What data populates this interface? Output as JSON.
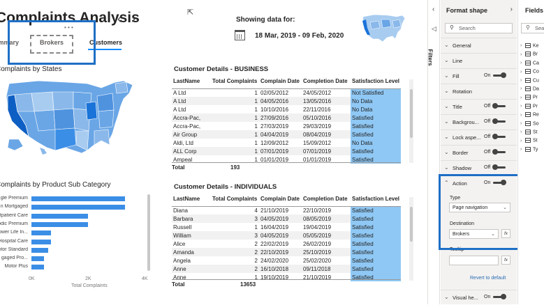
{
  "report": {
    "title": "Complaints Analysis",
    "nav_prev": "‹",
    "nav_next": "›",
    "tabs": [
      {
        "label": "Summary"
      },
      {
        "label": "Brokers"
      },
      {
        "label": "Customers"
      }
    ],
    "showing_label": "Showing data for:",
    "date_range": "18 Mar, 2019 - 09 Feb, 2020",
    "map_title": "Complaints by States",
    "bar_title": "Complaints by Product Sub Category"
  },
  "chart_data": {
    "type": "bar",
    "orientation": "horizontal",
    "title": "Complaints by Product Sub Category",
    "categories": [
      "Single Premium",
      "Non Mortgaged",
      "Outpatient Care",
      "Periodic Premium",
      "Whole Life In...",
      "Hospital Care",
      "Motor Standard",
      "Mortgaged Pro...",
      "Motor Plus"
    ],
    "category_labels_visible": [
      "gle Premium",
      "n Mortgaged",
      "utpatient Care",
      "odic Premium",
      "ower Life In...",
      "Hospital Care",
      "otor Standard",
      "gaged Pro...",
      "Motor Plus"
    ],
    "values": [
      3300,
      3300,
      2000,
      2000,
      700,
      700,
      600,
      450,
      450
    ],
    "xlabel": "Total Complaints",
    "xticks": [
      "0K",
      "2K",
      "4K"
    ],
    "xlim": [
      0,
      4000
    ]
  },
  "business": {
    "title": "Customer Details - BUSINESS",
    "columns": [
      "LastName",
      "Total Complaints",
      "Complain Date",
      "Completion Date",
      "Satisfaction Level"
    ],
    "rows": [
      [
        "A Ltd",
        "1",
        "02/05/2012",
        "24/05/2012",
        "Not Satisfied"
      ],
      [
        "A Ltd",
        "1",
        "04/05/2016",
        "13/05/2016",
        "No Data"
      ],
      [
        "A Ltd",
        "1",
        "10/10/2016",
        "22/11/2016",
        "No Data"
      ],
      [
        "Accra-Pac,",
        "1",
        "27/09/2016",
        "05/10/2016",
        "Satisfied"
      ],
      [
        "Accra-Pac,",
        "1",
        "27/03/2019",
        "29/03/2019",
        "Satisfied"
      ],
      [
        "Air Group",
        "1",
        "04/04/2019",
        "08/04/2019",
        "Satisfied"
      ],
      [
        "Aldi, Ltd",
        "1",
        "12/09/2012",
        "15/09/2012",
        "No Data"
      ],
      [
        "ALL Corp",
        "1",
        "07/01/2019",
        "07/01/2019",
        "Satisfied"
      ],
      [
        "Ampeal",
        "1",
        "01/01/2019",
        "01/01/2019",
        "Satisfied"
      ]
    ],
    "total_label": "Total",
    "total_value": "193"
  },
  "individuals": {
    "title": "Customer Details - INDIVIDUALS",
    "columns": [
      "LastName",
      "Total Complaints",
      "Complain Date",
      "Completion Date",
      "Satisfaction Level"
    ],
    "rows": [
      [
        "Diana",
        "4",
        "21/10/2019",
        "22/10/2019",
        "Satisfied"
      ],
      [
        "Barbara",
        "3",
        "04/05/2019",
        "08/05/2019",
        "Satisfied"
      ],
      [
        "Russell",
        "1",
        "16/04/2019",
        "19/04/2019",
        "Satisfied"
      ],
      [
        "William",
        "3",
        "04/05/2019",
        "05/05/2019",
        "Satisfied"
      ],
      [
        "Alice",
        "2",
        "22/02/2019",
        "26/02/2019",
        "Satisfied"
      ],
      [
        "Amanda",
        "2",
        "22/10/2019",
        "25/10/2019",
        "Satisfied"
      ],
      [
        "Angela",
        "2",
        "24/02/2020",
        "25/02/2020",
        "Satisfied"
      ],
      [
        "Anne",
        "2",
        "16/10/2018",
        "09/11/2018",
        "Satisfied"
      ],
      [
        "Anne",
        "1",
        "19/10/2019",
        "21/10/2019",
        "Satisfied"
      ]
    ],
    "total_label": "Total",
    "total_value": "13653"
  },
  "filters_pane": {
    "label": "Filters",
    "collapse": "‹"
  },
  "format_pane": {
    "title": "Format shape",
    "chevron": "›",
    "search_placeholder": "Search",
    "sections": [
      {
        "name": "General",
        "state": ""
      },
      {
        "name": "Line",
        "state": ""
      },
      {
        "name": "Fill",
        "state": "On"
      },
      {
        "name": "Rotation",
        "state": ""
      },
      {
        "name": "Title",
        "state": "Off"
      },
      {
        "name": "Backgrou...",
        "state": "Off"
      },
      {
        "name": "Lock aspe...",
        "state": "Off"
      },
      {
        "name": "Border",
        "state": "Off"
      },
      {
        "name": "Shadow",
        "state": "Off"
      },
      {
        "name": "Action",
        "state": "On"
      }
    ],
    "type_label": "Type",
    "type_value": "Page navigation",
    "destination_label": "Destination",
    "destination_value": "Brokers",
    "tooltip_label": "Tooltip",
    "fx": "fx",
    "revert": "Revert to default",
    "last_section": {
      "name": "Visual he...",
      "state": "On"
    }
  },
  "fields_pane": {
    "title": "Fields",
    "search_placeholder": "Search",
    "items": [
      "Ke",
      "Br",
      "Ca",
      "Co",
      "Cu",
      "Da",
      "Pr",
      "Pr",
      "Re",
      "So",
      "St",
      "St",
      "Ty"
    ]
  }
}
